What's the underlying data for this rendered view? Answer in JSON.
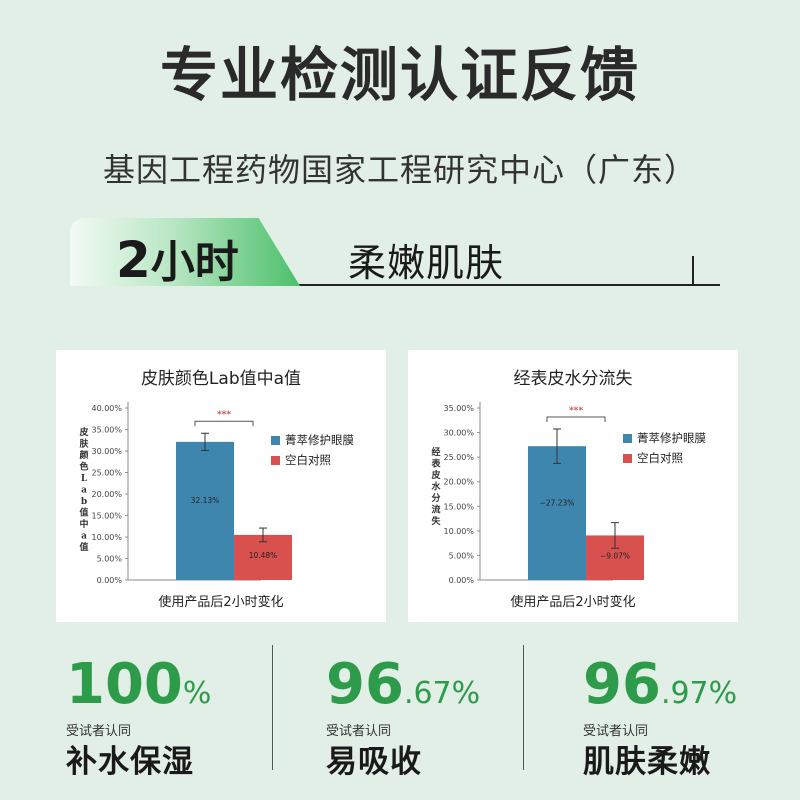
{
  "header": {
    "title": "专业检测认证反馈",
    "subtitle": "基因工程药物国家工程研究中心（广东）"
  },
  "banner": {
    "hours_num": "2",
    "hours_unit": "小时",
    "topic": "柔嫩肌肤"
  },
  "colors": {
    "product": "#3e86ad",
    "control": "#d9514e",
    "accent_green": "#2e9b4a",
    "significance": "#d9514e"
  },
  "chart_data": [
    {
      "type": "bar",
      "title": "皮肤颜色Lab值中a值",
      "ylabel": "皮肤颜色Lab值中a值",
      "ylabel_chars": [
        "皮",
        "肤",
        "颜",
        "色",
        "L",
        "a",
        "b",
        "值",
        "中",
        "a",
        "值"
      ],
      "xlabel": "使用产品后2小时变化",
      "ylim": [
        0,
        40
      ],
      "yticks": [
        "0.00%",
        "5.00%",
        "10.00%",
        "15.00%",
        "20.00%",
        "25.00%",
        "30.00%",
        "35.00%",
        "40.00%"
      ],
      "significance": "***",
      "series": [
        {
          "name": "菁萃修护眼膜",
          "value": 32.13,
          "label": "32.13%",
          "error": 2.0
        },
        {
          "name": "空白对照",
          "value": 10.48,
          "label": "10.48%",
          "error": 1.6
        }
      ]
    },
    {
      "type": "bar",
      "title": "经表皮水分流失",
      "ylabel": "经表皮水分流失",
      "ylabel_chars": [
        "经",
        "表",
        "皮",
        "水",
        "分",
        "流",
        "失"
      ],
      "xlabel": "使用产品后2小时变化",
      "ylim": [
        0,
        35
      ],
      "yticks": [
        "0.00%",
        "5.00%",
        "10.00%",
        "15.00%",
        "20.00%",
        "25.00%",
        "30.00%",
        "35.00%"
      ],
      "significance": "***",
      "series": [
        {
          "name": "菁萃修护眼膜",
          "value": 27.23,
          "label": "−27.23%",
          "error": 3.5
        },
        {
          "name": "空白对照",
          "value": 9.07,
          "label": "−9.07%",
          "error": 2.6
        }
      ]
    }
  ],
  "stats": [
    {
      "whole": "100",
      "fraction": "%",
      "caption": "受试者认同",
      "benefit": "补水保湿"
    },
    {
      "whole": "96",
      "fraction": ".67%",
      "caption": "受试者认同",
      "benefit": "易吸收"
    },
    {
      "whole": "96",
      "fraction": ".97%",
      "caption": "受试者认同",
      "benefit": "肌肤柔嫩"
    }
  ]
}
